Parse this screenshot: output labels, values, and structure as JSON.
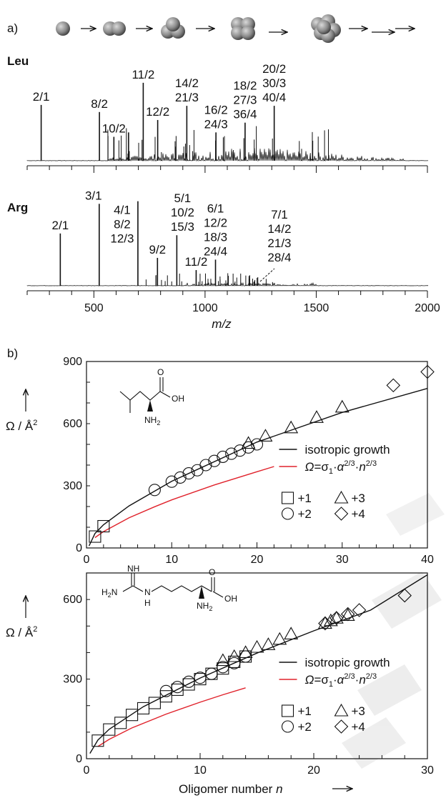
{
  "panel_a": {
    "label": "a)",
    "xlabel": "m/z",
    "chart_data": {
      "type": "line",
      "title": "",
      "xlabel": "m/z",
      "xlim": [
        200,
        2000
      ],
      "x_ticks": [
        "500",
        "1000",
        "1500",
        "2000"
      ],
      "spectra": [
        {
          "name": "Leu",
          "peaks": [
            {
              "x": 263,
              "h": 0.63,
              "label": "2/1"
            },
            {
              "x": 525,
              "h": 0.55,
              "label": "8/2"
            },
            {
              "x": 590,
              "h": 0.27,
              "label": "10/2"
            },
            {
              "x": 656,
              "h": 0.32,
              "label": ""
            },
            {
              "x": 722,
              "h": 0.88,
              "label": "11/2"
            },
            {
              "x": 787,
              "h": 0.46,
              "label": "12/2"
            },
            {
              "x": 918,
              "h": 0.62,
              "label": "14/2\n21/3"
            },
            {
              "x": 1049,
              "h": 0.32,
              "label": "16/2\n24/3"
            },
            {
              "x": 1180,
              "h": 0.43,
              "label": "18/2\n27/3\n36/4"
            },
            {
              "x": 1311,
              "h": 0.62,
              "label": "20/2\n30/3\n40/4"
            }
          ]
        },
        {
          "name": "Arg",
          "peaks": [
            {
              "x": 349,
              "h": 0.6,
              "label": "2/1"
            },
            {
              "x": 524,
              "h": 0.94,
              "label": "3/1"
            },
            {
              "x": 698,
              "h": 0.97,
              "label": "4/1\n8/2\n12/3"
            },
            {
              "x": 786,
              "h": 0.32,
              "label": "9/2"
            },
            {
              "x": 873,
              "h": 0.58,
              "label": "5/1\n10/2\n15/3"
            },
            {
              "x": 960,
              "h": 0.18,
              "label": "11/2"
            },
            {
              "x": 1047,
              "h": 0.3,
              "label": "6/1\n12/2\n18/3\n24/4"
            },
            {
              "x": 1222,
              "h": 0.05,
              "label": "7/1\n14/2\n21/3\n28/4"
            }
          ]
        }
      ]
    },
    "growth_icon": "cluster-growth-spheres-icon"
  },
  "panel_b": {
    "label": "b)",
    "xlabel_text": "Oligomer number",
    "xlabel_var": "n",
    "ylabel": "Ω / Å",
    "ylabel_sup": "2",
    "chart_data": [
      {
        "type": "scatter",
        "name": "Leu",
        "xlim": [
          0,
          40
        ],
        "ylim": [
          0,
          900
        ],
        "x_ticks": [
          "0",
          "10",
          "20",
          "30",
          "40"
        ],
        "y_ticks": [
          "0",
          "300",
          "600",
          "900"
        ],
        "series": [
          {
            "name": "+1",
            "marker": "square",
            "points": [
              [
                1,
                55
              ],
              [
                2,
                105
              ]
            ]
          },
          {
            "name": "+2",
            "marker": "circle",
            "points": [
              [
                8,
                280
              ],
              [
                10,
                320
              ],
              [
                11,
                340
              ],
              [
                12,
                360
              ],
              [
                13,
                375
              ],
              [
                14,
                400
              ],
              [
                15,
                420
              ],
              [
                16,
                440
              ],
              [
                17,
                455
              ],
              [
                18,
                470
              ],
              [
                19,
                485
              ],
              [
                20,
                500
              ]
            ]
          },
          {
            "name": "+3",
            "marker": "triangle",
            "points": [
              [
                19,
                505
              ],
              [
                21,
                540
              ],
              [
                24,
                580
              ],
              [
                27,
                630
              ],
              [
                30,
                680
              ]
            ]
          },
          {
            "name": "+4",
            "marker": "diamond",
            "points": [
              [
                36,
                785
              ],
              [
                40,
                850
              ]
            ]
          }
        ],
        "fit_isotropic": {
          "name": "isotropic growth",
          "color": "#111111",
          "points": [
            [
              0.3,
              10
            ],
            [
              1,
              70
            ],
            [
              2,
              112
            ],
            [
              5,
              203
            ],
            [
              10,
              322
            ],
            [
              20,
              511
            ],
            [
              30,
              654
            ],
            [
              40,
              770
            ]
          ]
        },
        "fit_sigma": {
          "name": "Ω=σ₁·α²ᐟ³·n²ᐟ³",
          "color": "#e0222b",
          "points": [
            [
              1,
              50
            ],
            [
              2,
              79
            ],
            [
              5,
              146
            ],
            [
              8,
              199
            ],
            [
              10,
              232
            ],
            [
              15,
              304
            ],
            [
              20,
              368
            ],
            [
              22,
              393
            ]
          ]
        }
      },
      {
        "type": "scatter",
        "name": "Arg",
        "xlim": [
          0,
          30
        ],
        "ylim": [
          0,
          700
        ],
        "x_ticks": [
          "0",
          "10",
          "20",
          "30"
        ],
        "y_ticks": [
          "600",
          "300",
          "0"
        ],
        "series": [
          {
            "name": "+1",
            "marker": "square",
            "points": [
              [
                1,
                68
              ],
              [
                2,
                110
              ],
              [
                3,
                135
              ],
              [
                4,
                165
              ],
              [
                5,
                190
              ],
              [
                6,
                210
              ],
              [
                7,
                235
              ],
              [
                8,
                260
              ],
              [
                9,
                280
              ],
              [
                10,
                300
              ],
              [
                11,
                320
              ],
              [
                12,
                340
              ],
              [
                13,
                365
              ],
              [
                14,
                385
              ]
            ]
          },
          {
            "name": "+2",
            "marker": "circle",
            "points": [
              [
                7,
                255
              ],
              [
                8,
                270
              ],
              [
                9,
                290
              ],
              [
                10,
                305
              ],
              [
                11,
                320
              ],
              [
                12,
                345
              ],
              [
                13,
                360
              ],
              [
                14,
                385
              ]
            ]
          },
          {
            "name": "+3",
            "marker": "triangle",
            "points": [
              [
                12,
                370
              ],
              [
                13,
                385
              ],
              [
                14,
                400
              ],
              [
                15,
                420
              ],
              [
                16,
                430
              ],
              [
                17,
                450
              ],
              [
                18,
                470
              ],
              [
                21,
                510
              ],
              [
                21.5,
                520
              ],
              [
                22,
                530
              ],
              [
                23,
                540
              ]
            ]
          },
          {
            "name": "+4",
            "marker": "diamond",
            "points": [
              [
                21,
                510
              ],
              [
                22,
                530
              ],
              [
                23,
                545
              ],
              [
                24,
                560
              ],
              [
                28,
                615
              ]
            ]
          }
        ],
        "fit_isotropic": {
          "name": "isotropic growth",
          "color": "#111111",
          "points": [
            [
              0.3,
              20
            ],
            [
              1,
              70
            ],
            [
              2,
              111
            ],
            [
              5,
              196
            ],
            [
              10,
              304
            ],
            [
              15,
              398
            ],
            [
              20,
              482
            ],
            [
              25,
              560
            ],
            [
              30,
              693
            ]
          ]
        },
        "fit_sigma": {
          "name": "Ω=σ₁·α²ᐟ³·n²ᐟ³",
          "color": "#e0222b",
          "points": [
            [
              1,
              46
            ],
            [
              2,
              73
            ],
            [
              4,
              116
            ],
            [
              7,
              168
            ],
            [
              10,
              213
            ],
            [
              12,
              241
            ],
            [
              14,
              267
            ]
          ]
        }
      }
    ],
    "legend": {
      "isotropic": "isotropic growth",
      "formula_omega": "Ω",
      "formula_eq": "=σ",
      "formula_sub": "1",
      "formula_dot": "·",
      "formula_alpha": "α",
      "formula_exp": "2/3",
      "formula_n": "n",
      "markers": {
        "sq": "+1",
        "ci": "+2",
        "tr": "+3",
        "di": "+4"
      }
    },
    "molecules": {
      "leu": {
        "o": "O",
        "oh": "OH",
        "nh": "NH",
        "sub": "2"
      },
      "arg": {
        "nh_top": "NH",
        "h2n": "H",
        "h2n_sub": "2",
        "n": "N",
        "h": "H",
        "o": "O",
        "oh": "OH",
        "nh": "NH",
        "sub": "2"
      }
    },
    "watermark": "cropped-slanted-draft-watermark"
  },
  "colors": {
    "ink": "#111111",
    "fit_red": "#e0222b",
    "watermark": "#e6e6e6"
  }
}
